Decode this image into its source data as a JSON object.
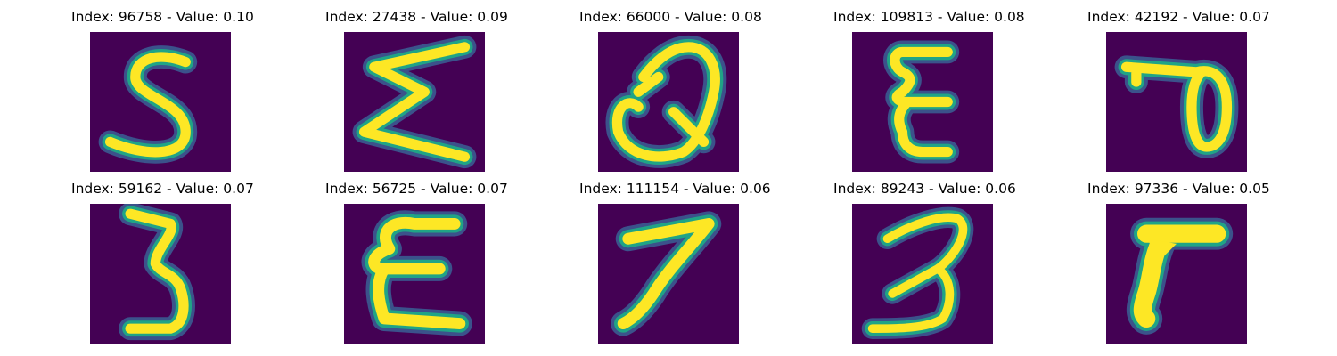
{
  "colors": {
    "background": "#440154",
    "stroke_core": "#fde725",
    "stroke_edge": "#20a486",
    "stroke_halo": "#3b528b"
  },
  "panels": [
    {
      "index": "96758",
      "value": "0.10",
      "title": "Index: 96758 - Value: 0.10",
      "glyph": "digit-5-stroke"
    },
    {
      "index": "27438",
      "value": "0.09",
      "title": "Index: 27438 - Value: 0.09",
      "glyph": "sigma-like-stroke"
    },
    {
      "index": "66000",
      "value": "0.08",
      "title": "Index: 66000 - Value: 0.08",
      "glyph": "q-like-stroke"
    },
    {
      "index": "109813",
      "value": "0.08",
      "title": "Index: 109813 - Value: 0.08",
      "glyph": "epsilon-stroke"
    },
    {
      "index": "42192",
      "value": "0.07",
      "title": "Index: 42192 - Value: 0.07",
      "glyph": "loop-stroke"
    },
    {
      "index": "59162",
      "value": "0.07",
      "title": "Index: 59162 - Value: 0.07",
      "glyph": "digit-3-stroke"
    },
    {
      "index": "56725",
      "value": "0.07",
      "title": "Index: 56725 - Value: 0.07",
      "glyph": "epsilon-wide-stroke"
    },
    {
      "index": "111154",
      "value": "0.06",
      "title": "Index: 111154 - Value: 0.06",
      "glyph": "digit-7-stroke"
    },
    {
      "index": "89243",
      "value": "0.06",
      "title": "Index: 89243 - Value: 0.06",
      "glyph": "open-3-stroke"
    },
    {
      "index": "97336",
      "value": "0.05",
      "title": "Index: 97336 - Value: 0.05",
      "glyph": "digit-7-thick-stroke"
    }
  ]
}
